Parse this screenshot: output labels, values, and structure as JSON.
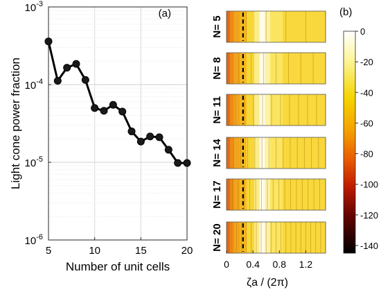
{
  "chart_data": [
    {
      "type": "line",
      "panel_label": "(a)",
      "xlabel": "Number of unit cells",
      "ylabel": "Light cone power fraction",
      "yscale": "log",
      "xlim": [
        5,
        20
      ],
      "ylim": [
        1e-06,
        0.001
      ],
      "grid": true,
      "x_ticks": [
        5,
        10,
        15,
        20
      ],
      "y_ticks": [
        {
          "value": 1e-06,
          "base": "10",
          "exp": "-6"
        },
        {
          "value": 1e-05,
          "base": "10",
          "exp": "-5"
        },
        {
          "value": 0.0001,
          "base": "10",
          "exp": "-4"
        },
        {
          "value": 0.001,
          "base": "10",
          "exp": "-3"
        }
      ],
      "series": [
        {
          "x": [
            5,
            6,
            7,
            8,
            9,
            10,
            11,
            12,
            13,
            14,
            15,
            16,
            17,
            18,
            19,
            20
          ],
          "y": [
            0.00036,
            0.000112,
            0.000165,
            0.000185,
            0.000115,
            5e-05,
            4.6e-05,
            5.5e-05,
            4.5e-05,
            2.5e-05,
            1.85e-05,
            2.15e-05,
            2.1e-05,
            1.45e-05,
            9.8e-06,
            9.8e-06
          ],
          "color": "#000000"
        }
      ]
    },
    {
      "type": "heatmap",
      "panel_label": "(b)",
      "xlabel": "ζa / (2π)",
      "x_ticks": [
        "0",
        "0.4",
        "0.8",
        "1.2"
      ],
      "x_tick_values": [
        0,
        0.4,
        0.8,
        1.2
      ],
      "xlim": [
        0,
        1.5
      ],
      "dashed_line_x": 0.25,
      "rows": [
        {
          "label": "N= 5",
          "n": 5
        },
        {
          "label": "N= 8",
          "n": 8
        },
        {
          "label": "N= 11",
          "n": 11
        },
        {
          "label": "N= 14",
          "n": 14
        },
        {
          "label": "N= 17",
          "n": 17
        },
        {
          "label": "N= 20",
          "n": 20
        }
      ],
      "colorbar": {
        "min": -145,
        "max": 0,
        "ticks": [
          "0",
          "-20",
          "-40",
          "-60",
          "-80",
          "-100",
          "-120",
          "-140"
        ],
        "tick_values": [
          0,
          -20,
          -40,
          -60,
          -80,
          -100,
          -120,
          -140
        ]
      }
    }
  ]
}
